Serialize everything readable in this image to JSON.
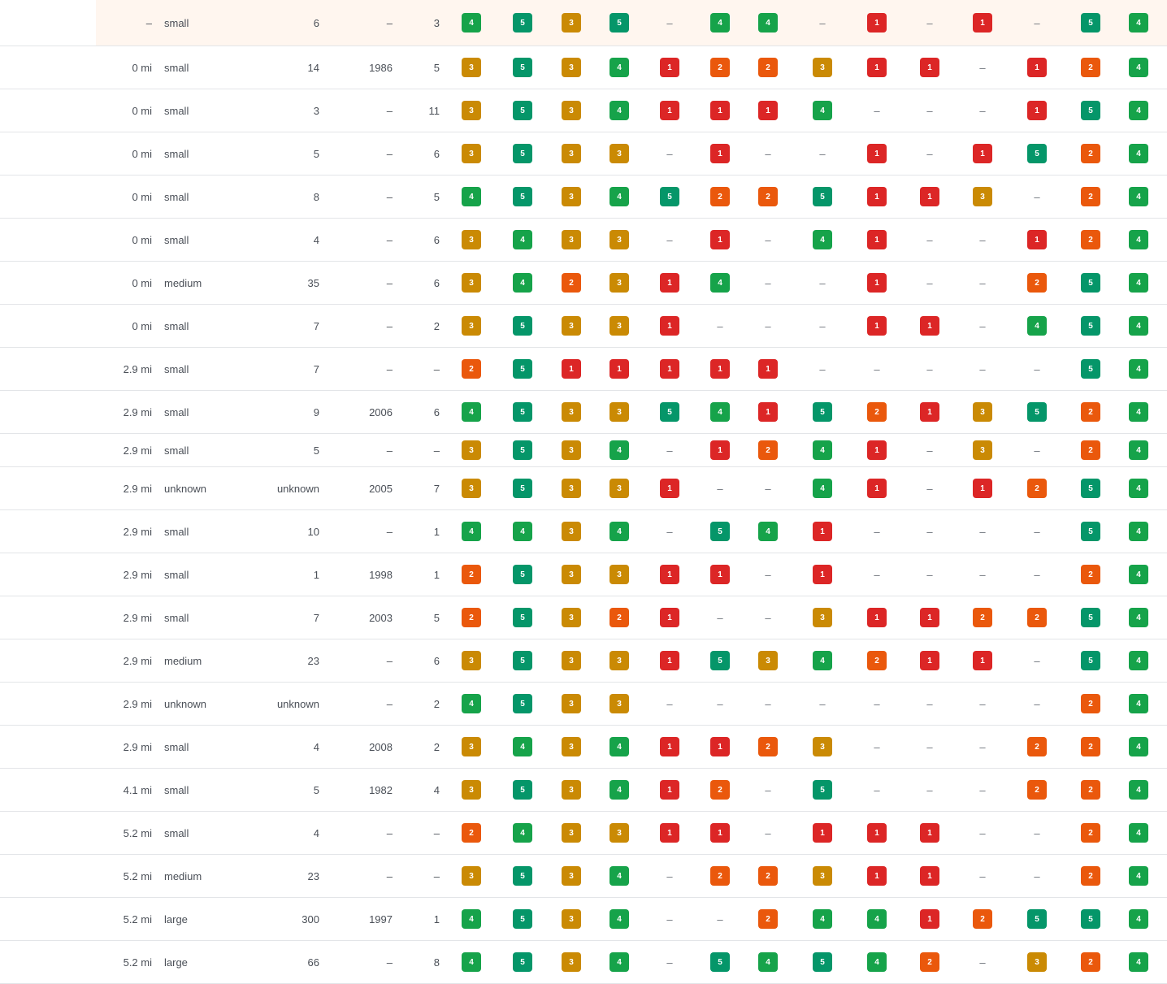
{
  "colors": {
    "1": "#dc2626",
    "2": "#ea580c",
    "3": "#ca8a04",
    "4": "#16a34a",
    "5": "#059669"
  },
  "empty_symbol": "–",
  "rows": [
    {
      "distance": "–",
      "size": "small",
      "employees": "6",
      "year": "–",
      "count": "3",
      "scores": [
        "4",
        "5",
        "3",
        "5",
        "–",
        "4",
        "4",
        "–",
        "1",
        "–",
        "1",
        "–",
        "5",
        "4"
      ],
      "highlighted": true
    },
    {
      "distance": "0 mi",
      "size": "small",
      "employees": "14",
      "year": "1986",
      "count": "5",
      "scores": [
        "3",
        "5",
        "3",
        "4",
        "1",
        "2",
        "2",
        "3",
        "1",
        "1",
        "–",
        "1",
        "2",
        "4"
      ]
    },
    {
      "distance": "0 mi",
      "size": "small",
      "employees": "3",
      "year": "–",
      "count": "11",
      "scores": [
        "3",
        "5",
        "3",
        "4",
        "1",
        "1",
        "1",
        "4",
        "–",
        "–",
        "–",
        "1",
        "5",
        "4"
      ]
    },
    {
      "distance": "0 mi",
      "size": "small",
      "employees": "5",
      "year": "–",
      "count": "6",
      "scores": [
        "3",
        "5",
        "3",
        "3",
        "–",
        "1",
        "–",
        "–",
        "1",
        "–",
        "1",
        "5",
        "2",
        "4"
      ]
    },
    {
      "distance": "0 mi",
      "size": "small",
      "employees": "8",
      "year": "–",
      "count": "5",
      "scores": [
        "4",
        "5",
        "3",
        "4",
        "5",
        "2",
        "2",
        "5",
        "1",
        "1",
        "3",
        "–",
        "2",
        "4"
      ]
    },
    {
      "distance": "0 mi",
      "size": "small",
      "employees": "4",
      "year": "–",
      "count": "6",
      "scores": [
        "3",
        "4",
        "3",
        "3",
        "–",
        "1",
        "–",
        "4",
        "1",
        "–",
        "–",
        "1",
        "2",
        "4"
      ]
    },
    {
      "distance": "0 mi",
      "size": "medium",
      "employees": "35",
      "year": "–",
      "count": "6",
      "scores": [
        "3",
        "4",
        "2",
        "3",
        "1",
        "4",
        "–",
        "–",
        "1",
        "–",
        "–",
        "2",
        "5",
        "4"
      ]
    },
    {
      "distance": "0 mi",
      "size": "small",
      "employees": "7",
      "year": "–",
      "count": "2",
      "scores": [
        "3",
        "5",
        "3",
        "3",
        "1",
        "–",
        "–",
        "–",
        "1",
        "1",
        "–",
        "4",
        "5",
        "4"
      ]
    },
    {
      "distance": "2.9 mi",
      "size": "small",
      "employees": "7",
      "year": "–",
      "count": "–",
      "scores": [
        "2",
        "5",
        "1",
        "1",
        "1",
        "1",
        "1",
        "–",
        "–",
        "–",
        "–",
        "–",
        "5",
        "4"
      ]
    },
    {
      "distance": "2.9 mi",
      "size": "small",
      "employees": "9",
      "year": "2006",
      "count": "6",
      "scores": [
        "4",
        "5",
        "3",
        "3",
        "5",
        "4",
        "1",
        "5",
        "2",
        "1",
        "3",
        "5",
        "2",
        "4"
      ]
    },
    {
      "distance": "2.9 mi",
      "size": "small",
      "employees": "5",
      "year": "–",
      "count": "–",
      "scores": [
        "3",
        "5",
        "3",
        "4",
        "–",
        "1",
        "2",
        "4",
        "1",
        "–",
        "3",
        "–",
        "2",
        "4"
      ]
    },
    {
      "distance": "2.9 mi",
      "size": "unknown",
      "employees": "unknown",
      "year": "2005",
      "count": "7",
      "scores": [
        "3",
        "5",
        "3",
        "3",
        "1",
        "–",
        "–",
        "4",
        "1",
        "–",
        "1",
        "2",
        "5",
        "4"
      ]
    },
    {
      "distance": "2.9 mi",
      "size": "small",
      "employees": "10",
      "year": "–",
      "count": "1",
      "scores": [
        "4",
        "4",
        "3",
        "4",
        "–",
        "5",
        "4",
        "1",
        "–",
        "–",
        "–",
        "–",
        "5",
        "4"
      ]
    },
    {
      "distance": "2.9 mi",
      "size": "small",
      "employees": "1",
      "year": "1998",
      "count": "1",
      "scores": [
        "2",
        "5",
        "3",
        "3",
        "1",
        "1",
        "–",
        "1",
        "–",
        "–",
        "–",
        "–",
        "2",
        "4"
      ]
    },
    {
      "distance": "2.9 mi",
      "size": "small",
      "employees": "7",
      "year": "2003",
      "count": "5",
      "scores": [
        "2",
        "5",
        "3",
        "2",
        "1",
        "–",
        "–",
        "3",
        "1",
        "1",
        "2",
        "2",
        "5",
        "4"
      ]
    },
    {
      "distance": "2.9 mi",
      "size": "medium",
      "employees": "23",
      "year": "–",
      "count": "6",
      "scores": [
        "3",
        "5",
        "3",
        "3",
        "1",
        "5",
        "3",
        "4",
        "2",
        "1",
        "1",
        "–",
        "5",
        "4"
      ]
    },
    {
      "distance": "2.9 mi",
      "size": "unknown",
      "employees": "unknown",
      "year": "–",
      "count": "2",
      "scores": [
        "4",
        "5",
        "3",
        "3",
        "–",
        "–",
        "–",
        "–",
        "–",
        "–",
        "–",
        "–",
        "2",
        "4"
      ]
    },
    {
      "distance": "2.9 mi",
      "size": "small",
      "employees": "4",
      "year": "2008",
      "count": "2",
      "scores": [
        "3",
        "4",
        "3",
        "4",
        "1",
        "1",
        "2",
        "3",
        "–",
        "–",
        "–",
        "2",
        "2",
        "4"
      ]
    },
    {
      "distance": "4.1 mi",
      "size": "small",
      "employees": "5",
      "year": "1982",
      "count": "4",
      "scores": [
        "3",
        "5",
        "3",
        "4",
        "1",
        "2",
        "–",
        "5",
        "–",
        "–",
        "–",
        "2",
        "2",
        "4"
      ]
    },
    {
      "distance": "5.2 mi",
      "size": "small",
      "employees": "4",
      "year": "–",
      "count": "–",
      "scores": [
        "2",
        "4",
        "3",
        "3",
        "1",
        "1",
        "–",
        "1",
        "1",
        "1",
        "–",
        "–",
        "2",
        "4"
      ]
    },
    {
      "distance": "5.2 mi",
      "size": "medium",
      "employees": "23",
      "year": "–",
      "count": "–",
      "scores": [
        "3",
        "5",
        "3",
        "4",
        "–",
        "2",
        "2",
        "3",
        "1",
        "1",
        "–",
        "–",
        "2",
        "4"
      ]
    },
    {
      "distance": "5.2 mi",
      "size": "large",
      "employees": "300",
      "year": "1997",
      "count": "1",
      "scores": [
        "4",
        "5",
        "3",
        "4",
        "–",
        "–",
        "2",
        "4",
        "4",
        "1",
        "2",
        "5",
        "5",
        "4"
      ]
    },
    {
      "distance": "5.2 mi",
      "size": "large",
      "employees": "66",
      "year": "–",
      "count": "8",
      "scores": [
        "4",
        "5",
        "3",
        "4",
        "–",
        "5",
        "4",
        "5",
        "4",
        "2",
        "–",
        "3",
        "2",
        "4"
      ]
    }
  ]
}
